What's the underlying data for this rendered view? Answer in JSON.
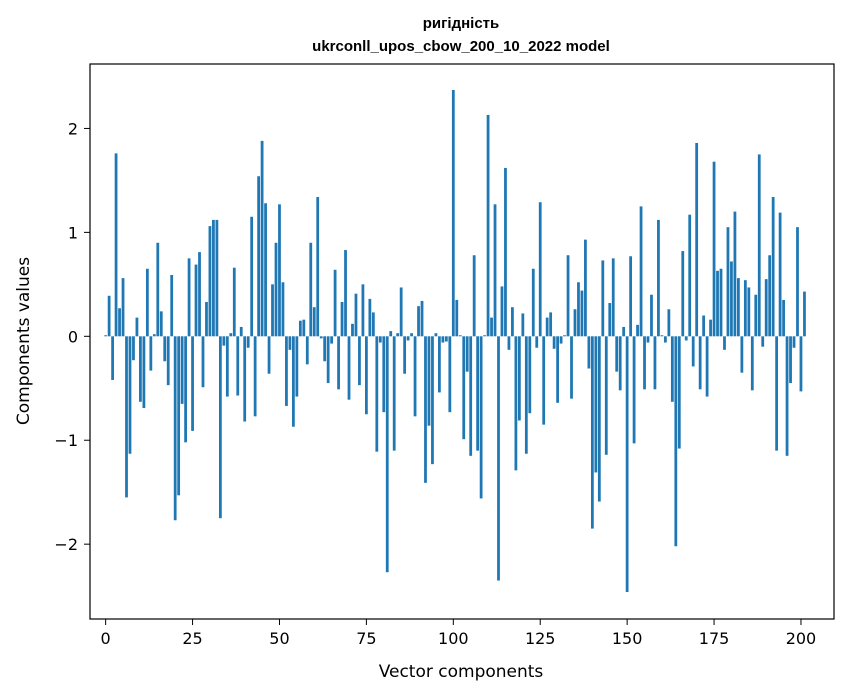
{
  "chart_data": {
    "type": "bar",
    "title_line1": "ригідність",
    "title_line2": "ukrconll_upos_cbow_200_10_2022 model",
    "xlabel": "Vector components",
    "ylabel": "Components values",
    "xlim": [
      -4.5,
      209.5
    ],
    "ylim": [
      -2.72,
      2.62
    ],
    "xticks": [
      0,
      25,
      50,
      75,
      100,
      125,
      150,
      175,
      200
    ],
    "yticks": [
      -2,
      -1,
      0,
      1,
      2
    ],
    "ytick_labels": [
      "−2",
      "−1",
      "0",
      "1",
      "2"
    ],
    "grid": false,
    "bar_color": "#1f77b4",
    "values": [
      0.01,
      0.39,
      -0.42,
      1.76,
      0.27,
      0.56,
      -1.55,
      -1.13,
      -0.23,
      0.18,
      -0.63,
      -0.69,
      0.65,
      -0.33,
      0.02,
      0.9,
      0.24,
      -0.24,
      -0.47,
      0.59,
      -1.77,
      -1.53,
      -0.65,
      -1.02,
      0.75,
      -0.91,
      0.69,
      0.81,
      -0.49,
      0.33,
      1.06,
      1.12,
      1.12,
      -1.75,
      -0.09,
      -0.58,
      0.03,
      0.66,
      -0.57,
      0.09,
      -0.82,
      -0.11,
      1.15,
      -0.77,
      1.54,
      1.88,
      1.28,
      -0.36,
      0.5,
      0.9,
      1.27,
      0.52,
      -0.67,
      -0.13,
      -0.87,
      -0.58,
      0.15,
      0.16,
      -0.27,
      0.9,
      0.28,
      1.34,
      -0.02,
      -0.24,
      -0.45,
      -0.07,
      0.64,
      -0.51,
      0.33,
      0.83,
      -0.61,
      0.12,
      0.41,
      -0.47,
      0.5,
      -0.75,
      0.36,
      0.23,
      -1.11,
      -0.06,
      -0.73,
      -2.27,
      0.05,
      -1.1,
      0.03,
      0.47,
      -0.36,
      -0.04,
      0.03,
      -0.77,
      0.29,
      0.34,
      -1.41,
      -0.86,
      -1.23,
      0.03,
      -0.54,
      -0.06,
      -0.05,
      -0.73,
      2.37,
      0.35,
      0.01,
      -0.99,
      -0.34,
      -1.15,
      0.78,
      -1.1,
      -1.56,
      0.01,
      2.13,
      0.18,
      1.27,
      -2.35,
      0.48,
      1.62,
      -0.13,
      0.28,
      -1.29,
      -0.81,
      0.22,
      -1.13,
      -0.74,
      0.65,
      -0.11,
      1.29,
      -0.85,
      0.18,
      0.23,
      -0.12,
      -0.64,
      -0.07,
      0.01,
      0.78,
      -0.6,
      0.26,
      0.52,
      0.44,
      0.93,
      -0.31,
      -1.85,
      -1.31,
      -1.59,
      0.73,
      -1.14,
      0.32,
      0.75,
      -0.34,
      -0.52,
      0.09,
      -2.46,
      0.77,
      -1.03,
      0.11,
      1.25,
      -0.51,
      -0.06,
      0.4,
      -0.51,
      1.12,
      0.01,
      -0.06,
      0.26,
      -0.63,
      -2.02,
      -1.08,
      0.82,
      -0.04,
      1.17,
      -0.29,
      1.86,
      -0.51,
      0.2,
      -0.58,
      0.16,
      1.68,
      0.63,
      0.65,
      -0.13,
      1.05,
      0.72,
      1.2,
      0.56,
      -0.35,
      0.54,
      0.47,
      -0.52,
      0.4,
      1.75,
      -0.1,
      0.55,
      0.78,
      1.34,
      -1.1,
      1.19,
      0.35,
      -1.15,
      -0.45,
      -0.11,
      1.05,
      -0.53,
      0.43
    ]
  }
}
